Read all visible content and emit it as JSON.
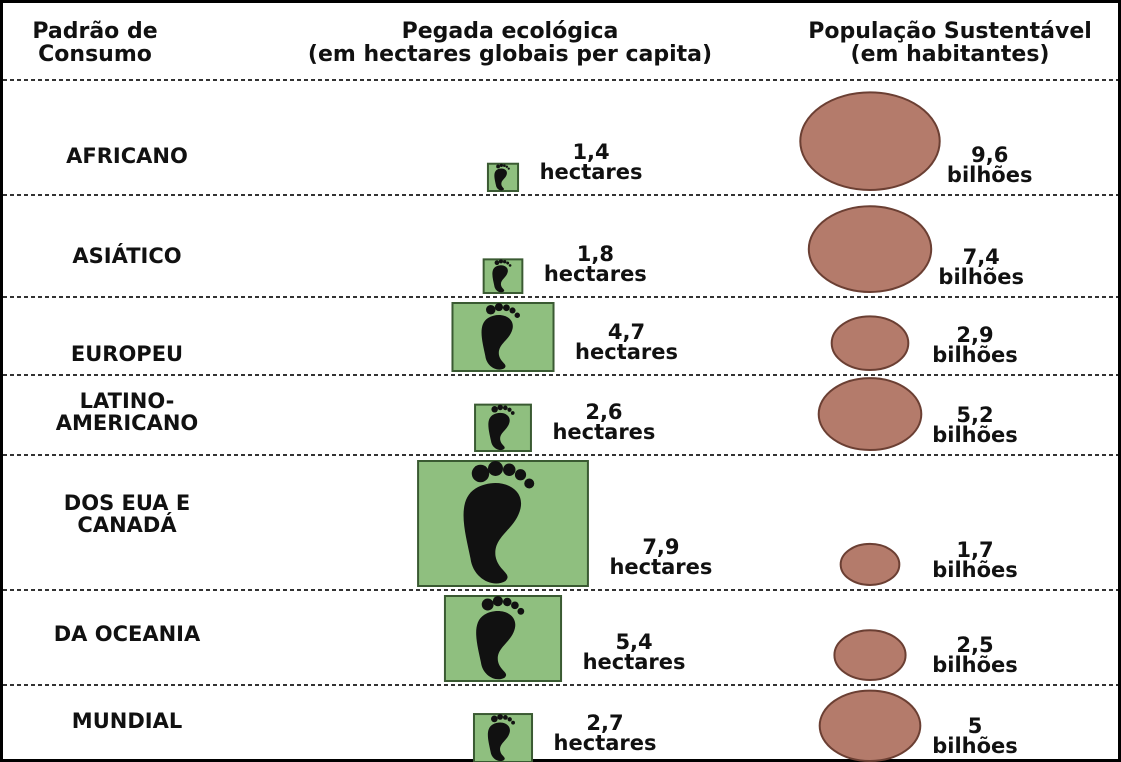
{
  "header": {
    "consumption": [
      "Padrão de",
      "Consumo"
    ],
    "footprint": [
      "Pegada ecológica",
      "(em hectares globais per capita)"
    ],
    "population": [
      "População Sustentável",
      "(em habitantes)"
    ]
  },
  "rows": [
    {
      "name": [
        "AFRICANO"
      ],
      "footprint": 1.4,
      "footprint_label": "1,4",
      "footprint_unit": "hectares",
      "population": 9.6,
      "population_label": "9,6",
      "population_unit": "bilhões"
    },
    {
      "name": [
        "ASIÁTICO"
      ],
      "footprint": 1.8,
      "footprint_label": "1,8",
      "footprint_unit": "hectares",
      "population": 7.4,
      "population_label": "7,4",
      "population_unit": "bilhões"
    },
    {
      "name": [
        "EUROPEU"
      ],
      "footprint": 4.7,
      "footprint_label": "4,7",
      "footprint_unit": "hectares",
      "population": 2.9,
      "population_label": "2,9",
      "population_unit": "bilhões"
    },
    {
      "name": [
        "LATINO-",
        "AMERICANO"
      ],
      "footprint": 2.6,
      "footprint_label": "2,6",
      "footprint_unit": "hectares",
      "population": 5.2,
      "population_label": "5,2",
      "population_unit": "bilhões"
    },
    {
      "name": [
        "DOS EUA E",
        "CANADÁ"
      ],
      "footprint": 7.9,
      "footprint_label": "7,9",
      "footprint_unit": "hectares",
      "population": 1.7,
      "population_label": "1,7",
      "population_unit": "bilhões"
    },
    {
      "name": [
        "DA OCEANIA"
      ],
      "footprint": 5.4,
      "footprint_label": "5,4",
      "footprint_unit": "hectares",
      "population": 2.5,
      "population_label": "2,5",
      "population_unit": "bilhões"
    },
    {
      "name": [
        "MUNDIAL"
      ],
      "footprint": 2.7,
      "footprint_label": "2,7",
      "footprint_unit": "hectares",
      "population": 5,
      "population_label": "5",
      "population_unit": "bilhões"
    }
  ]
}
